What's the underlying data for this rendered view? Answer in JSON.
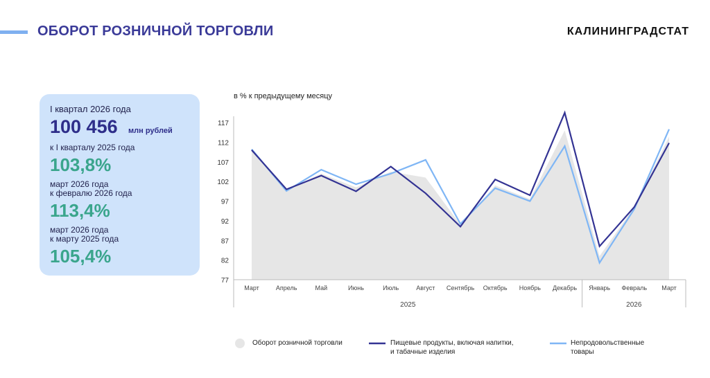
{
  "header": {
    "title": "ОБОРОТ РОЗНИЧНОЙ ТОРГОВЛИ",
    "brand": "КАЛИНИНГРАДСТАТ"
  },
  "summary": {
    "period_label": "I квартал 2026 года",
    "total_value": "100 456",
    "total_unit": "млн рублей",
    "cmp1_label": "к I кварталу 2025 года",
    "cmp1_value": "103,8%",
    "cmp2_label_line1": "март 2026 года",
    "cmp2_label_line2": "к февралю 2026 года",
    "cmp2_value": "113,4%",
    "cmp3_label_line1": "март 2026 года",
    "cmp3_label_line2": "к марту 2025 года",
    "cmp3_value": "105,4%"
  },
  "colors": {
    "area": "#e6e6e6",
    "food": "#333393",
    "nonfood": "#7fb6f5",
    "title": "#3a3a98",
    "highlight": "#3aa58c"
  },
  "chart_data": {
    "type": "line",
    "subtitle": "в % к предыдущему месяцу",
    "categories": [
      "Март",
      "Апрель",
      "Май",
      "Июнь",
      "Июль",
      "Август",
      "Сентябрь",
      "Октябрь",
      "Ноябрь",
      "Декабрь",
      "Январь",
      "Февраль",
      "Март"
    ],
    "year_groups": [
      {
        "label": "2025",
        "count": 10
      },
      {
        "label": "2026",
        "count": 3
      }
    ],
    "yticks": [
      77,
      82,
      87,
      92,
      97,
      102,
      107,
      112,
      117
    ],
    "ylim": [
      77,
      120
    ],
    "series": [
      {
        "name": "Оборот розничной торговли",
        "kind": "area",
        "values": [
          110,
          99.8,
          104,
          100.5,
          104.5,
          103,
          91,
          101,
          97.5,
          115,
          83,
          95.5,
          113.4
        ]
      },
      {
        "name": "Пищевые продукты, включая напитки, и табачные изделия",
        "kind": "line",
        "values": [
          110,
          100,
          103.5,
          99.5,
          105.8,
          99,
          90.5,
          102.5,
          98.5,
          119.5,
          85.5,
          95.5,
          111.8
        ]
      },
      {
        "name": "Непродовольственные товары",
        "kind": "line",
        "values": [
          110.2,
          99.6,
          105,
          101.3,
          104,
          107.5,
          91.2,
          100.3,
          97,
          111,
          81.3,
          95,
          115.3
        ]
      }
    ],
    "legend": {
      "area": "Оборот розничной торговли",
      "food_line1": "Пищевые продукты, включая напитки,",
      "food_line2": "и табачные изделия",
      "nonfood_line1": "Непродовольственные",
      "nonfood_line2": "товары"
    }
  }
}
